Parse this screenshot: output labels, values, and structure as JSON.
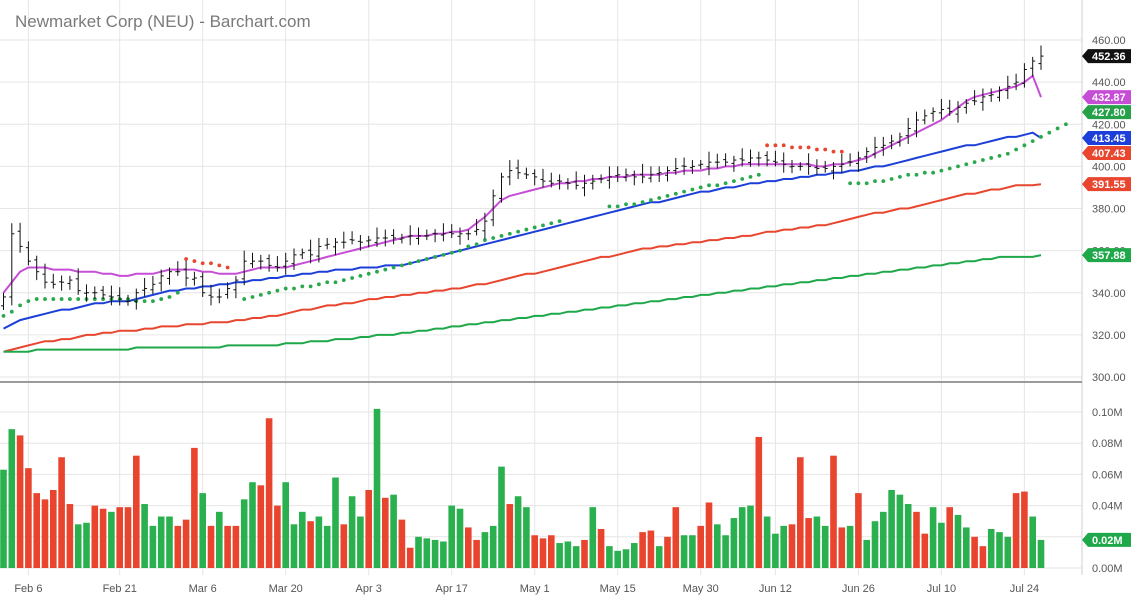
{
  "chart_data": {
    "title": "Newmarket Corp (NEU) - Barchart.com",
    "type": "ohlc",
    "price_axis": {
      "ylim": [
        300,
        460
      ],
      "ticks": [
        "460.00",
        "440.00",
        "420.00",
        "400.00",
        "380.00",
        "360.00",
        "340.00",
        "320.00",
        "300.00"
      ],
      "tick_values": [
        460,
        440,
        420,
        400,
        380,
        360,
        340,
        320,
        300
      ]
    },
    "volume_axis": {
      "ylim": [
        0,
        0.1
      ],
      "ticks": [
        "0.10M",
        "0.08M",
        "0.06M",
        "0.04M",
        "0.02M",
        "0.00M"
      ],
      "tick_values": [
        0.1,
        0.08,
        0.06,
        0.04,
        0.02,
        0.0
      ]
    },
    "x_ticks": [
      {
        "label": "Feb 6",
        "bar": 3
      },
      {
        "label": "Feb 21",
        "bar": 14
      },
      {
        "label": "Mar 6",
        "bar": 24
      },
      {
        "label": "Mar 20",
        "bar": 34
      },
      {
        "label": "Apr 3",
        "bar": 44
      },
      {
        "label": "Apr 17",
        "bar": 54
      },
      {
        "label": "May 1",
        "bar": 64
      },
      {
        "label": "May 15",
        "bar": 74
      },
      {
        "label": "May 30",
        "bar": 84
      },
      {
        "label": "Jun 12",
        "bar": 93
      },
      {
        "label": "Jun 26",
        "bar": 103
      },
      {
        "label": "Jul 10",
        "bar": 113
      },
      {
        "label": "Jul 24",
        "bar": 123
      }
    ],
    "closes": [
      338,
      368,
      362,
      355,
      350,
      345,
      344,
      345,
      346,
      341,
      340,
      340,
      339,
      338,
      337,
      336,
      340,
      342,
      344,
      348,
      350,
      350,
      347,
      347,
      340,
      338,
      338,
      342,
      346,
      355,
      355,
      355,
      353,
      352,
      355,
      358,
      359,
      358,
      362,
      363,
      364,
      364,
      365,
      364,
      365,
      366,
      366,
      366,
      366,
      367,
      367,
      367,
      368,
      368,
      368,
      368,
      368,
      370,
      374,
      386,
      395,
      398,
      397,
      396,
      395,
      393,
      392,
      393,
      392,
      391,
      392,
      393,
      394,
      395,
      396,
      396,
      395,
      395,
      396,
      397,
      398,
      399,
      400,
      400,
      401,
      402,
      402,
      402,
      403,
      403,
      404,
      404,
      403,
      402,
      401,
      400,
      400,
      400,
      399,
      399,
      400,
      401,
      402,
      404,
      407,
      409,
      410,
      412,
      414,
      418,
      422,
      424,
      426,
      427,
      426,
      428,
      430,
      431,
      433,
      434,
      436,
      438,
      440,
      446,
      450,
      452.36
    ],
    "volume": [
      0.063,
      0.089,
      0.085,
      0.064,
      0.048,
      0.044,
      0.05,
      0.071,
      0.041,
      0.028,
      0.029,
      0.04,
      0.038,
      0.036,
      0.039,
      0.039,
      0.072,
      0.041,
      0.027,
      0.033,
      0.033,
      0.027,
      0.031,
      0.077,
      0.048,
      0.027,
      0.036,
      0.027,
      0.027,
      0.044,
      0.055,
      0.053,
      0.096,
      0.04,
      0.055,
      0.028,
      0.036,
      0.03,
      0.033,
      0.027,
      0.058,
      0.028,
      0.046,
      0.033,
      0.05,
      0.102,
      0.045,
      0.047,
      0.031,
      0.013,
      0.02,
      0.019,
      0.018,
      0.017,
      0.04,
      0.038,
      0.026,
      0.018,
      0.023,
      0.027,
      0.065,
      0.041,
      0.046,
      0.039,
      0.021,
      0.019,
      0.021,
      0.016,
      0.017,
      0.014,
      0.018,
      0.039,
      0.025,
      0.014,
      0.011,
      0.012,
      0.016,
      0.023,
      0.024,
      0.014,
      0.02,
      0.039,
      0.021,
      0.021,
      0.027,
      0.042,
      0.028,
      0.021,
      0.032,
      0.039,
      0.04,
      0.084,
      0.033,
      0.022,
      0.027,
      0.028,
      0.071,
      0.032,
      0.033,
      0.027,
      0.072,
      0.026,
      0.027,
      0.048,
      0.018,
      0.03,
      0.036,
      0.05,
      0.047,
      0.041,
      0.036,
      0.022,
      0.039,
      0.029,
      0.039,
      0.034,
      0.026,
      0.02,
      0.014,
      0.025,
      0.023,
      0.02,
      0.048,
      0.049,
      0.033,
      0.018
    ],
    "volume_up": [
      1,
      1,
      0,
      0,
      0,
      0,
      0,
      0,
      0,
      1,
      1,
      0,
      0,
      1,
      0,
      0,
      0,
      1,
      1,
      1,
      1,
      0,
      0,
      0,
      1,
      0,
      1,
      0,
      0,
      1,
      1,
      0,
      0,
      0,
      1,
      1,
      1,
      0,
      1,
      1,
      1,
      0,
      1,
      1,
      0,
      1,
      0,
      1,
      0,
      0,
      1,
      1,
      1,
      1,
      1,
      1,
      0,
      0,
      1,
      1,
      1,
      0,
      1,
      1,
      0,
      0,
      0,
      1,
      1,
      1,
      0,
      1,
      0,
      1,
      1,
      1,
      1,
      0,
      0,
      1,
      0,
      0,
      1,
      1,
      0,
      0,
      1,
      1,
      1,
      1,
      1,
      0,
      1,
      1,
      1,
      0,
      0,
      0,
      1,
      1,
      0,
      0,
      1,
      0,
      1,
      1,
      1,
      1,
      1,
      1,
      0,
      0,
      1,
      1,
      0,
      1,
      1,
      0,
      0,
      1,
      1,
      1,
      0,
      0,
      1,
      1
    ],
    "series": [
      {
        "name": "",
        "color": "#c64ed6",
        "values": [
          340,
          345,
          350,
          352,
          352,
          352,
          351,
          351,
          351,
          350,
          350,
          350,
          349,
          349,
          348,
          348,
          349,
          349,
          349,
          350,
          351,
          351,
          351,
          351,
          350,
          350,
          349,
          349,
          349,
          350,
          351,
          352,
          352,
          352,
          352,
          353,
          354,
          355,
          356,
          357,
          358,
          359,
          360,
          361,
          362,
          363,
          364,
          365,
          366,
          367,
          367,
          367,
          368,
          368,
          369,
          369,
          370,
          373,
          376,
          380,
          384,
          386,
          387,
          388,
          389,
          390,
          391,
          392,
          392,
          393,
          393,
          394,
          394,
          395,
          395,
          395,
          396,
          396,
          396,
          396,
          397,
          397,
          398,
          398,
          398,
          399,
          399,
          400,
          400,
          401,
          401,
          401,
          401,
          401,
          401,
          401,
          401,
          401,
          400,
          400,
          401,
          401,
          402,
          403,
          404,
          406,
          408,
          410,
          412,
          414,
          416,
          418,
          420,
          422,
          425,
          428,
          431,
          433,
          434,
          435,
          436,
          437,
          438,
          440,
          443,
          432.87
        ]
      },
      {
        "name": "",
        "color": "#1c3fd9",
        "values": [
          323,
          325,
          327,
          328,
          329,
          330,
          331,
          332,
          332,
          333,
          334,
          335,
          335,
          336,
          336,
          336,
          337,
          338,
          339,
          340,
          341,
          341,
          342,
          342,
          343,
          343,
          344,
          344,
          345,
          345,
          346,
          346,
          347,
          347,
          348,
          348,
          349,
          349,
          350,
          350,
          351,
          351,
          351,
          352,
          352,
          352,
          353,
          353,
          353,
          354,
          355,
          356,
          357,
          358,
          359,
          360,
          361,
          362,
          363,
          364,
          365,
          366,
          367,
          368,
          369,
          370,
          371,
          372,
          373,
          374,
          375,
          376,
          377,
          378,
          379,
          380,
          381,
          382,
          383,
          383,
          384,
          385,
          386,
          387,
          388,
          388,
          389,
          390,
          390,
          391,
          392,
          392,
          393,
          393,
          394,
          394,
          395,
          395,
          396,
          396,
          397,
          397,
          398,
          398,
          399,
          400,
          400,
          401,
          402,
          403,
          404,
          405,
          406,
          407,
          408,
          409,
          410,
          410,
          411,
          412,
          413,
          414,
          414,
          415,
          416,
          413.45
        ]
      },
      {
        "name": "",
        "color": "#e8462f",
        "values": [
          312,
          313,
          314,
          315,
          316,
          317,
          317,
          318,
          318,
          319,
          320,
          320,
          321,
          321,
          322,
          322,
          322,
          323,
          323,
          324,
          324,
          324,
          325,
          325,
          325,
          326,
          326,
          326,
          327,
          327,
          328,
          328,
          329,
          329,
          330,
          331,
          332,
          332,
          333,
          334,
          334,
          335,
          335,
          336,
          337,
          337,
          338,
          338,
          339,
          339,
          340,
          340,
          341,
          341,
          342,
          342,
          343,
          344,
          344,
          345,
          346,
          347,
          348,
          349,
          349,
          350,
          351,
          352,
          353,
          354,
          355,
          356,
          357,
          357,
          358,
          359,
          360,
          361,
          361,
          362,
          362,
          363,
          363,
          364,
          364,
          365,
          365,
          366,
          366,
          367,
          367,
          368,
          369,
          369,
          370,
          370,
          371,
          371,
          372,
          372,
          373,
          374,
          375,
          376,
          377,
          378,
          378,
          379,
          380,
          380,
          381,
          382,
          383,
          384,
          385,
          386,
          387,
          387,
          388,
          389,
          389,
          390,
          391,
          391,
          391,
          391.55
        ]
      },
      {
        "name": "",
        "color": "#1fa84a",
        "values": [
          312,
          312,
          312,
          312,
          313,
          313,
          313,
          313,
          313,
          313,
          313,
          313,
          313,
          313,
          313,
          313,
          314,
          314,
          314,
          314,
          314,
          314,
          314,
          314,
          314,
          314,
          314,
          315,
          315,
          315,
          315,
          315,
          315,
          315,
          316,
          316,
          316,
          317,
          317,
          317,
          318,
          318,
          318,
          319,
          319,
          320,
          320,
          320,
          321,
          321,
          322,
          322,
          323,
          323,
          324,
          324,
          325,
          325,
          326,
          326,
          327,
          327,
          328,
          328,
          329,
          329,
          330,
          330,
          331,
          331,
          332,
          332,
          333,
          333,
          334,
          334,
          335,
          335,
          336,
          336,
          337,
          337,
          338,
          338,
          339,
          339,
          340,
          340,
          341,
          341,
          342,
          342,
          343,
          343,
          344,
          344,
          345,
          345,
          346,
          346,
          347,
          347,
          348,
          348,
          349,
          349,
          350,
          350,
          351,
          351,
          352,
          352,
          353,
          353,
          354,
          354,
          355,
          355,
          356,
          356,
          357,
          357,
          357,
          357,
          357,
          357.88
        ]
      }
    ],
    "sar_dots": [
      {
        "start": 0,
        "end": 21,
        "color": "#2aa84c",
        "values": [
          329,
          331,
          334,
          336,
          337,
          337,
          337,
          337,
          337,
          337,
          337,
          337,
          337,
          337,
          337,
          337,
          336,
          336,
          336,
          337,
          338,
          340
        ]
      },
      {
        "start": 22,
        "end": 27,
        "color": "#e8462f",
        "values": [
          356,
          355,
          354,
          354,
          353,
          352
        ]
      },
      {
        "start": 29,
        "end": 67,
        "color": "#2aa84c",
        "values": [
          337,
          338,
          339,
          340,
          341,
          342,
          342,
          343,
          343,
          344,
          345,
          345,
          346,
          347,
          348,
          349,
          350,
          351,
          352,
          353,
          354,
          355,
          356,
          357,
          358,
          359,
          360,
          362,
          363,
          365,
          366,
          367,
          368,
          369,
          370,
          371,
          372,
          373,
          374
        ]
      },
      {
        "start": 73,
        "end": 84,
        "color": "#2aa84c",
        "values": [
          381,
          381,
          382,
          382,
          383,
          384,
          385,
          386,
          387,
          388,
          389,
          390
        ]
      },
      {
        "start": 85,
        "end": 91,
        "color": "#2aa84c",
        "values": [
          391,
          391,
          392,
          393,
          394,
          395,
          396
        ]
      },
      {
        "start": 92,
        "end": 101,
        "color": "#e8462f",
        "values": [
          410,
          410,
          410,
          409,
          409,
          409,
          408,
          408,
          407,
          407
        ]
      },
      {
        "start": 102,
        "end": 128,
        "color": "#2aa84c",
        "values": [
          392,
          392,
          392,
          393,
          393,
          394,
          395,
          396,
          396,
          397,
          397,
          398,
          399,
          400,
          401,
          402,
          403,
          404,
          405,
          406,
          408,
          410,
          412,
          414,
          416,
          418,
          420
        ]
      }
    ],
    "price_badges": [
      {
        "label": "452.36",
        "value": 452.36,
        "color": "#111111"
      },
      {
        "label": "432.87",
        "value": 432.87,
        "color": "#c64ed6"
      },
      {
        "label": "427.80",
        "value": 427.8,
        "color": "#27a04a"
      },
      {
        "label": "413.45",
        "value": 413.45,
        "color": "#1c3fd9"
      },
      {
        "label": "407.43",
        "value": 407.43,
        "color": "#e8462f"
      },
      {
        "label": "391.55",
        "value": 391.55,
        "color": "#e8462f"
      },
      {
        "label": "357.88",
        "value": 357.88,
        "color": "#1fa84a"
      }
    ],
    "volume_badge": {
      "label": "0.02M",
      "value": 0.018,
      "color": "#1fa84a"
    },
    "colors": {
      "up": "#2ab04f",
      "down": "#e8442e",
      "ohlc": "#111111",
      "grid": "#e6e6e6"
    }
  }
}
